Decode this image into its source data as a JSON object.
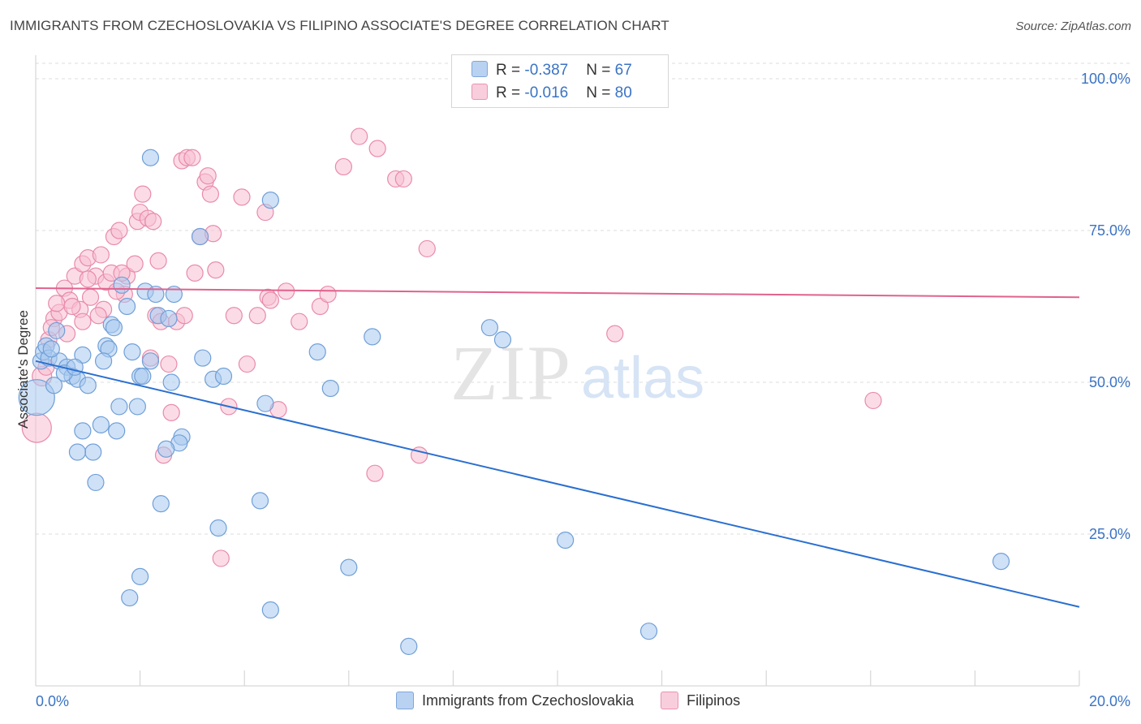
{
  "title": "IMMIGRANTS FROM CZECHOSLOVAKIA VS FILIPINO ASSOCIATE'S DEGREE CORRELATION CHART",
  "source": "Source: ZipAtlas.com",
  "watermark": {
    "zip": "ZIP",
    "atlas": "atlas"
  },
  "legend": {
    "rows": [
      {
        "r_label": "R = ",
        "r_value": "-0.387",
        "n_label": "N = ",
        "n_value": "67"
      },
      {
        "r_label": "R = ",
        "r_value": "-0.016",
        "n_label": "N = ",
        "n_value": "80"
      }
    ]
  },
  "bottom_legend": [
    "Immigrants from Czechoslovakia",
    "Filipinos"
  ],
  "colors": {
    "blue_fill": "#a8c8ef",
    "blue_stroke": "#6f9fd8",
    "blue_line": "#2a6fd0",
    "pink_fill": "#f7bfd2",
    "pink_stroke": "#e98aab",
    "pink_line": "#e0628e",
    "axis_label": "#3a73c4",
    "grid": "#dddddd"
  },
  "chart_data": {
    "type": "scatter",
    "title": "IMMIGRANTS FROM CZECHOSLOVAKIA VS FILIPINO ASSOCIATE'S DEGREE CORRELATION CHART",
    "xlabel": "",
    "ylabel": "Associate's Degree",
    "xlim": [
      0,
      20
    ],
    "ylim": [
      0,
      100
    ],
    "x_tick_labels": [
      "0.0%",
      "20.0%"
    ],
    "y_tick_labels": [
      "25.0%",
      "50.0%",
      "75.0%",
      "100.0%"
    ],
    "y_ticks": [
      25,
      50,
      75,
      100
    ],
    "grid": true,
    "legend_position": "top-center",
    "series": [
      {
        "name": "Immigrants from Czechoslovakia",
        "color": "#a8c8ef",
        "trend": {
          "x": [
            0,
            20
          ],
          "y": [
            53.5,
            13
          ]
        },
        "points": [
          [
            0.02,
            47.5,
            22
          ],
          [
            0.1,
            53.5,
            10
          ],
          [
            0.15,
            55,
            10
          ],
          [
            0.2,
            56,
            10
          ],
          [
            0.25,
            54,
            10
          ],
          [
            0.35,
            49.5,
            10
          ],
          [
            0.4,
            58.5,
            10
          ],
          [
            0.45,
            53.5,
            10
          ],
          [
            0.6,
            52.5,
            10
          ],
          [
            0.7,
            51,
            10
          ],
          [
            0.8,
            50.5,
            10
          ],
          [
            0.9,
            54.5,
            10
          ],
          [
            1.0,
            49.5,
            10
          ],
          [
            1.35,
            56,
            10
          ],
          [
            1.4,
            55.5,
            10
          ],
          [
            1.45,
            59.5,
            10
          ],
          [
            1.5,
            59,
            10
          ],
          [
            1.6,
            46,
            10
          ],
          [
            1.65,
            66,
            10
          ],
          [
            1.75,
            62.5,
            10
          ],
          [
            1.95,
            46,
            10
          ],
          [
            2.0,
            51,
            10
          ],
          [
            2.05,
            51,
            10
          ],
          [
            2.1,
            65,
            10
          ],
          [
            2.2,
            53.5,
            10
          ],
          [
            2.3,
            64.5,
            10
          ],
          [
            2.35,
            61,
            10
          ],
          [
            2.55,
            60.5,
            10
          ],
          [
            2.6,
            50,
            10
          ],
          [
            2.65,
            64.5,
            10
          ],
          [
            2.8,
            41,
            10
          ],
          [
            2.75,
            40,
            10
          ],
          [
            2.5,
            39,
            10
          ],
          [
            2.4,
            30,
            10
          ],
          [
            2.2,
            87,
            10
          ],
          [
            3.15,
            74,
            10
          ],
          [
            3.2,
            54,
            10
          ],
          [
            3.4,
            50.5,
            10
          ],
          [
            3.6,
            51,
            10
          ],
          [
            4.5,
            80,
            10
          ],
          [
            4.4,
            46.5,
            10
          ],
          [
            4.3,
            30.5,
            10
          ],
          [
            5.4,
            55,
            10
          ],
          [
            5.65,
            49,
            10
          ],
          [
            6.0,
            19.5,
            10
          ],
          [
            6.45,
            57.5,
            10
          ],
          [
            8.7,
            59,
            10
          ],
          [
            8.95,
            57,
            10
          ],
          [
            10.15,
            24,
            10
          ],
          [
            11.75,
            9,
            10
          ],
          [
            18.5,
            20.5,
            10
          ],
          [
            4.5,
            12.5,
            10
          ],
          [
            7.15,
            6.5,
            10
          ],
          [
            3.5,
            26,
            10
          ],
          [
            2.0,
            18,
            10
          ],
          [
            1.8,
            14.5,
            10
          ],
          [
            1.15,
            33.5,
            10
          ],
          [
            1.1,
            38.5,
            10
          ],
          [
            0.8,
            38.5,
            10
          ],
          [
            0.9,
            42,
            10
          ],
          [
            1.25,
            43,
            10
          ],
          [
            1.55,
            42,
            10
          ],
          [
            0.55,
            51.5,
            10
          ],
          [
            0.3,
            55.5,
            10
          ],
          [
            1.3,
            53.5,
            10
          ],
          [
            0.75,
            52.5,
            10
          ],
          [
            1.85,
            55,
            10
          ]
        ]
      },
      {
        "name": "Filipinos",
        "color": "#f7bfd2",
        "trend": {
          "x": [
            0,
            20
          ],
          "y": [
            65.5,
            64
          ]
        },
        "points": [
          [
            0.02,
            42.5,
            18
          ],
          [
            0.12,
            51,
            12
          ],
          [
            0.25,
            57,
            10
          ],
          [
            0.35,
            60.5,
            10
          ],
          [
            0.45,
            61.5,
            10
          ],
          [
            0.55,
            65.5,
            10
          ],
          [
            0.65,
            63.5,
            10
          ],
          [
            0.75,
            67.5,
            10
          ],
          [
            0.85,
            62,
            10
          ],
          [
            0.9,
            69.5,
            10
          ],
          [
            1.0,
            70.5,
            10
          ],
          [
            1.05,
            64,
            10
          ],
          [
            1.15,
            67.5,
            10
          ],
          [
            1.25,
            71,
            10
          ],
          [
            1.3,
            62,
            10
          ],
          [
            1.35,
            66.5,
            10
          ],
          [
            1.45,
            68,
            10
          ],
          [
            1.5,
            74,
            10
          ],
          [
            1.6,
            75,
            10
          ],
          [
            1.7,
            64.5,
            10
          ],
          [
            1.75,
            67.5,
            10
          ],
          [
            1.9,
            69.5,
            10
          ],
          [
            1.95,
            76.5,
            10
          ],
          [
            2.0,
            78,
            10
          ],
          [
            2.05,
            81,
            10
          ],
          [
            2.15,
            77,
            10
          ],
          [
            2.25,
            76.5,
            10
          ],
          [
            2.3,
            61,
            10
          ],
          [
            2.4,
            60,
            10
          ],
          [
            2.55,
            53,
            10
          ],
          [
            2.6,
            45,
            10
          ],
          [
            2.7,
            60,
            10
          ],
          [
            2.8,
            86.5,
            10
          ],
          [
            2.9,
            87,
            10
          ],
          [
            3.0,
            87,
            10
          ],
          [
            3.05,
            68,
            10
          ],
          [
            3.15,
            74,
            10
          ],
          [
            3.25,
            83,
            10
          ],
          [
            3.3,
            84,
            10
          ],
          [
            3.35,
            81,
            10
          ],
          [
            3.45,
            68.5,
            10
          ],
          [
            3.55,
            21,
            10
          ],
          [
            3.8,
            61,
            10
          ],
          [
            3.95,
            80.5,
            10
          ],
          [
            4.05,
            53,
            10
          ],
          [
            4.25,
            61,
            10
          ],
          [
            4.4,
            78,
            10
          ],
          [
            4.45,
            64,
            10
          ],
          [
            4.5,
            63.5,
            10
          ],
          [
            4.65,
            45.5,
            10
          ],
          [
            4.8,
            65,
            10
          ],
          [
            5.05,
            60,
            10
          ],
          [
            5.45,
            62.5,
            10
          ],
          [
            5.6,
            64.5,
            10
          ],
          [
            5.9,
            85.5,
            10
          ],
          [
            6.2,
            90.5,
            10
          ],
          [
            6.5,
            35,
            10
          ],
          [
            6.55,
            88.5,
            10
          ],
          [
            6.9,
            83.5,
            10
          ],
          [
            7.05,
            83.5,
            10
          ],
          [
            7.35,
            38,
            10
          ],
          [
            7.5,
            72,
            10
          ],
          [
            11.1,
            58,
            10
          ],
          [
            16.05,
            47,
            10
          ],
          [
            2.45,
            38,
            10
          ],
          [
            3.7,
            46,
            10
          ],
          [
            1.0,
            67,
            10
          ],
          [
            0.4,
            63,
            10
          ],
          [
            0.6,
            58,
            10
          ],
          [
            0.2,
            52.5,
            10
          ],
          [
            1.2,
            61,
            10
          ],
          [
            1.65,
            68,
            10
          ],
          [
            2.2,
            54,
            10
          ],
          [
            2.85,
            61,
            10
          ],
          [
            0.9,
            60,
            10
          ],
          [
            1.55,
            65,
            10
          ],
          [
            0.3,
            59,
            10
          ],
          [
            0.7,
            62.5,
            10
          ],
          [
            2.35,
            70,
            10
          ],
          [
            3.4,
            74.5,
            10
          ]
        ]
      }
    ]
  }
}
